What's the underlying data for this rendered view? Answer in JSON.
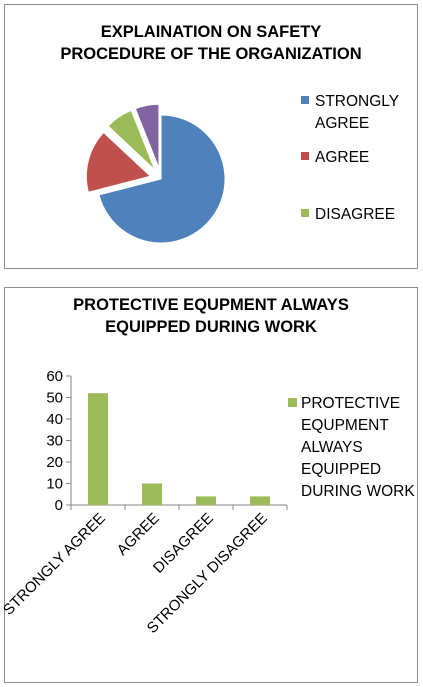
{
  "chart_data": [
    {
      "type": "pie",
      "title_lines": [
        "EXPLAINATION  ON SAFETY",
        "PROCEDURE OF THE ORGANIZATION"
      ],
      "slices": [
        {
          "label": "STRONGLY AGREE",
          "value": 71,
          "color": "#4f81bd",
          "exploded": false
        },
        {
          "label": "AGREE",
          "value": 16,
          "color": "#c0504d",
          "exploded": true
        },
        {
          "label": "DISAGREE",
          "value": 7,
          "color": "#9bbb59",
          "exploded": true
        },
        {
          "label": "",
          "value": 6,
          "color": "#8064a2",
          "exploded": true
        }
      ],
      "legend": [
        {
          "lines": [
            "STRONGLY",
            "AGREE"
          ],
          "color": "#4f81bd"
        },
        {
          "lines": [
            "AGREE"
          ],
          "color": "#c0504d"
        },
        {
          "lines": [
            "DISAGREE"
          ],
          "color": "#9bbb59"
        }
      ],
      "legend_position": "right"
    },
    {
      "type": "bar",
      "title_lines": [
        "PROTECTIVE EQUPMENT ALWAYS",
        "EQUIPPED DURING  WORK"
      ],
      "categories": [
        "STRONGLY AGREE",
        "AGREE",
        "DISAGREE",
        "STRONGLY DISAGREE"
      ],
      "series": [
        {
          "name": "PROTECTIVE EQUPMENT ALWAYS EQUIPPED DURING WORK",
          "values": [
            52,
            10,
            4,
            4
          ],
          "color": "#9bbb59"
        }
      ],
      "legend_lines": [
        "PROTECTIVE",
        "EQUPMENT",
        "ALWAYS",
        "EQUIPPED",
        "DURING WORK"
      ],
      "ylim": [
        0,
        60
      ],
      "yticks": [
        "0",
        "10",
        "20",
        "30",
        "40",
        "50",
        "60"
      ],
      "grid": false,
      "legend_position": "right"
    }
  ]
}
